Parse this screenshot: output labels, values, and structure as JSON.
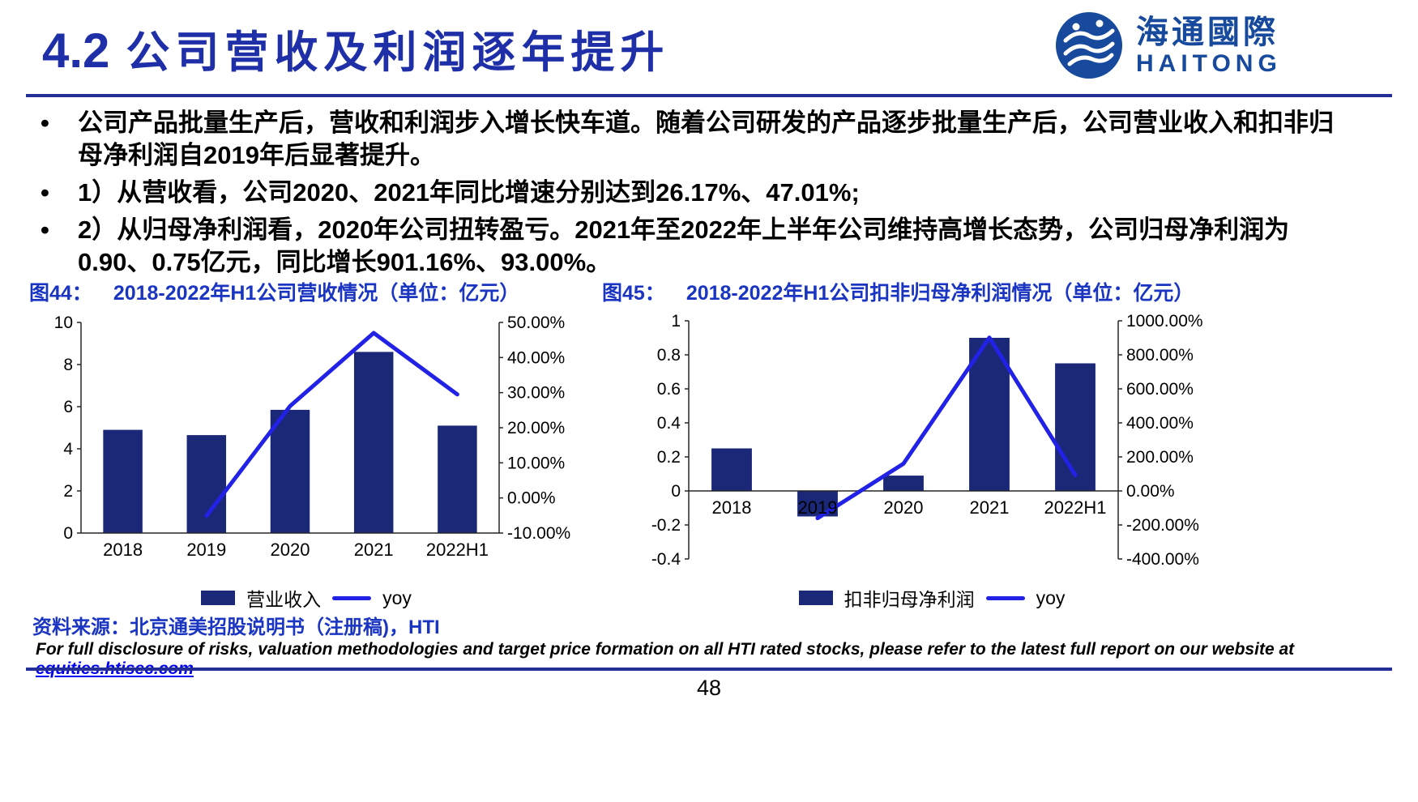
{
  "header": {
    "section_number": "4.2",
    "title": "公司营收及利润逐年提升",
    "logo": {
      "name_cn": "海通國際",
      "name_en": "HAITONG"
    }
  },
  "bullets": [
    "公司产品批量生产后，营收和利润步入增长快车道。随着公司研发的产品逐步批量生产后，公司营业收入和扣非归母净利润自2019年后显著提升。",
    "1）从营收看，公司2020、2021年同比增速分别达到26.17%、47.01%;",
    "2）从归母净利润看，2020年公司扭转盈亏。2021年至2022年上半年公司维持高增长态势，公司归母净利润为0.90、0.75亿元，同比增长901.16%、93.00%。"
  ],
  "chart_data": [
    {
      "type": "bar+line",
      "fig_label": "图44：",
      "title": "2018-2022年H1公司营收情况（单位：亿元）",
      "categories": [
        "2018",
        "2019",
        "2020",
        "2021",
        "2022H1"
      ],
      "bar_series": {
        "name": "营业收入",
        "axis": "left",
        "values": [
          4.9,
          4.65,
          5.85,
          8.6,
          5.1
        ]
      },
      "line_series": {
        "name": "yoy",
        "axis": "right",
        "unit": "%",
        "values": [
          null,
          -5.1,
          26.17,
          47.01,
          29.5
        ]
      },
      "left_axis": {
        "min": 0,
        "max": 10,
        "tick_labels": [
          "10",
          "8",
          "6",
          "4",
          "2",
          "0"
        ]
      },
      "right_axis": {
        "min": -10,
        "max": 50,
        "tick_labels": [
          "50.00%",
          "40.00%",
          "30.00%",
          "20.00%",
          "10.00%",
          "0.00%",
          "-10.00%"
        ]
      },
      "legend": [
        "营业收入",
        "yoy"
      ],
      "grid": false,
      "legend_position": "bottom"
    },
    {
      "type": "bar+line",
      "fig_label": "图45：",
      "title": "2018-2022年H1公司扣非归母净利润情况（单位：亿元）",
      "categories": [
        "2018",
        "2019",
        "2020",
        "2021",
        "2022H1"
      ],
      "bar_series": {
        "name": "扣非归母净利润",
        "axis": "left",
        "values": [
          0.25,
          -0.15,
          0.09,
          0.9,
          0.75
        ]
      },
      "line_series": {
        "name": "yoy",
        "axis": "right",
        "unit": "%",
        "values": [
          null,
          -160,
          160,
          901.16,
          93.0
        ]
      },
      "left_axis": {
        "min": -0.4,
        "max": 1,
        "tick_labels": [
          "1",
          "0.8",
          "0.6",
          "0.4",
          "0.2",
          "0",
          "-0.2",
          "-0.4"
        ]
      },
      "right_axis": {
        "min": -400,
        "max": 1000,
        "tick_labels": [
          "1000.00%",
          "800.00%",
          "600.00%",
          "400.00%",
          "200.00%",
          "0.00%",
          "-200.00%",
          "-400.00%"
        ]
      },
      "legend": [
        "扣非归母净利润",
        "yoy"
      ],
      "grid": false,
      "legend_position": "bottom"
    }
  ],
  "footer": {
    "source": "资料来源：北京通美招股说明书（注册稿)，HTI",
    "disclosure": "For full disclosure of risks, valuation methodologies and target price formation on all HTI rated stocks, please refer to the latest full report on our website at ",
    "link": "equities.htisec.com",
    "page_number": "48"
  },
  "colors": {
    "title_navy": "#1F2FA8",
    "rule_navy": "#232F96",
    "chart_title_blue": "#1A35C2",
    "bar_navy": "#1B2878",
    "line_blue": "#2222E6",
    "link_blue": "#0000EE",
    "logo_blue": "#174A9C",
    "axis_gray": "#262626"
  }
}
